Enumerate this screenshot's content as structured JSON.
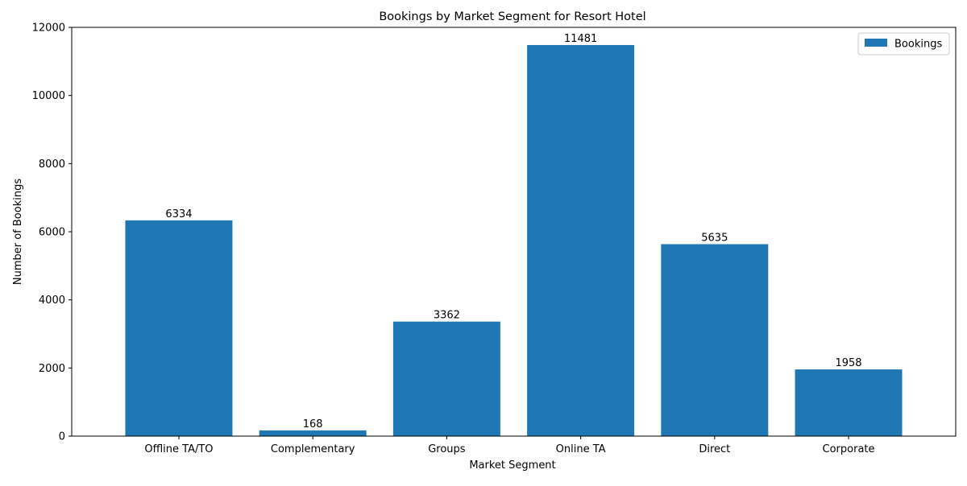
{
  "chart_data": {
    "type": "bar",
    "title": "Bookings by Market Segment for Resort Hotel",
    "xlabel": "Market Segment",
    "ylabel": "Number of Bookings",
    "categories": [
      "Offline TA/TO",
      "Complementary",
      "Groups",
      "Online TA",
      "Direct",
      "Corporate"
    ],
    "series": [
      {
        "name": "Bookings",
        "values": [
          6334,
          168,
          3362,
          11481,
          5635,
          1958
        ],
        "color": "#1f77b4"
      }
    ],
    "data_labels": [
      "6334",
      "168",
      "3362",
      "11481",
      "5635",
      "1958"
    ],
    "ylim": [
      0,
      12000
    ],
    "yticks": [
      0,
      2000,
      4000,
      6000,
      8000,
      10000,
      12000
    ],
    "ytick_labels": [
      "0",
      "2000",
      "4000",
      "6000",
      "8000",
      "10000",
      "12000"
    ],
    "grid": false,
    "legend_position": "top-right"
  }
}
